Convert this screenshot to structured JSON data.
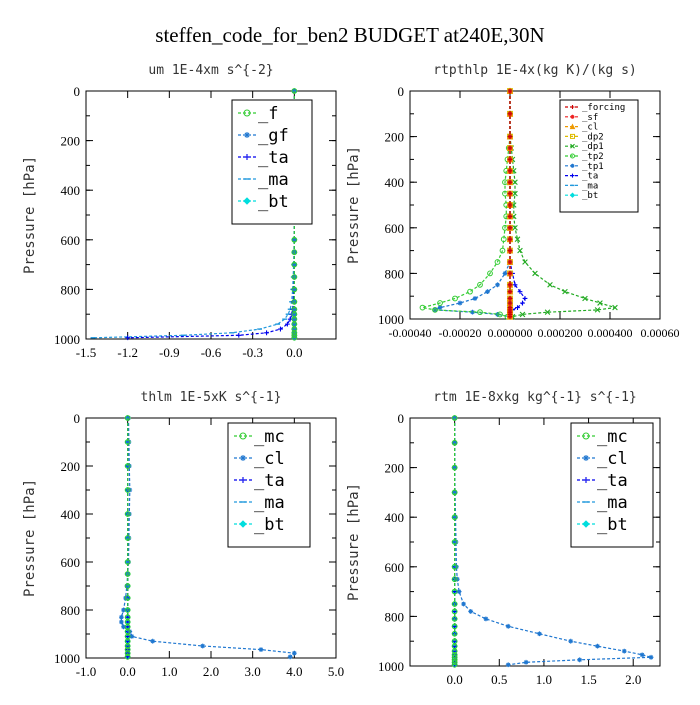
{
  "figure": {
    "title": "steffen_code_for_ben2  BUDGET at240E,30N"
  },
  "chart_data": [
    {
      "type": "line",
      "title": "um  1E-4xm s^{-2}",
      "ylabel": "Pressure [hPa]",
      "xlabel": "",
      "xlim": [
        -1.5,
        0.3
      ],
      "ylim": [
        0,
        1000
      ],
      "y_inverted": true,
      "xticks": [
        -1.5,
        -1.2,
        -0.9,
        -0.6,
        -0.3,
        0.0
      ],
      "xtick_labels": [
        "-1.5",
        "-1.2",
        "-0.9",
        "-0.6",
        "-0.3",
        "0.0"
      ],
      "yticks": [
        0,
        200,
        400,
        600,
        800,
        1000
      ],
      "ytick_labels": [
        "0",
        "200",
        "400",
        "600",
        "800",
        "1000"
      ],
      "legend_position": "top-right",
      "legend_font": "large",
      "y": [
        0,
        100,
        200,
        300,
        400,
        500,
        600,
        650,
        700,
        750,
        800,
        850,
        880,
        900,
        920,
        940,
        960,
        975,
        985,
        995
      ],
      "series": [
        {
          "name": "_f",
          "color": "#33cc33",
          "marker": "circle-open",
          "values": [
            0,
            0,
            0,
            0,
            0,
            0,
            0,
            0,
            0,
            0,
            0,
            0,
            0,
            0,
            0,
            0,
            0,
            0,
            0,
            0
          ]
        },
        {
          "name": "_gf",
          "color": "#1f77d0",
          "marker": "star",
          "values": [
            0,
            0,
            0,
            0,
            0,
            0,
            0,
            0,
            0,
            0,
            0,
            0,
            0,
            0,
            0,
            0,
            0,
            0,
            0,
            0
          ]
        },
        {
          "name": "_ta",
          "color": "#0000ee",
          "marker": "plus",
          "values": [
            0,
            0,
            0,
            0,
            0,
            0,
            0,
            0,
            0,
            -0.002,
            -0.005,
            -0.008,
            -0.012,
            -0.018,
            -0.03,
            -0.05,
            -0.1,
            -0.2,
            -0.4,
            -1.2
          ]
        },
        {
          "name": "_ma",
          "color": "#2299dd",
          "marker": "dash",
          "values": [
            0,
            0,
            0,
            0,
            0,
            -0.001,
            -0.002,
            -0.003,
            -0.005,
            -0.008,
            -0.012,
            -0.02,
            -0.03,
            -0.045,
            -0.07,
            -0.12,
            -0.25,
            -0.45,
            -0.8,
            -1.45
          ]
        },
        {
          "name": "_bt",
          "color": "#00dddd",
          "marker": "diamond",
          "values": [
            0,
            0,
            0,
            0,
            0,
            0,
            0,
            0,
            0,
            0,
            0,
            0,
            0,
            0,
            0,
            0,
            0,
            0,
            0,
            0
          ]
        }
      ]
    },
    {
      "type": "line",
      "title": "rtpthlp  1E-4x(kg K)/(kg s)",
      "ylabel": "Pressure [hPa]",
      "xlabel": "",
      "xlim": [
        -0.0004,
        0.0006
      ],
      "ylim": [
        0,
        1000
      ],
      "y_inverted": true,
      "xticks": [
        -0.0004,
        -0.0002,
        0.0,
        0.0002,
        0.0004,
        0.0006
      ],
      "xtick_labels": [
        "-0.00040",
        "-0.00020",
        "0.000000",
        "0.000200",
        "0.000400",
        "0.00060"
      ],
      "yticks": [
        0,
        200,
        400,
        600,
        800,
        1000
      ],
      "ytick_labels": [
        "0",
        "200",
        "400",
        "600",
        "800",
        "1000"
      ],
      "legend_position": "top-right",
      "legend_font": "small",
      "y": [
        0,
        100,
        200,
        250,
        300,
        350,
        400,
        450,
        500,
        550,
        600,
        650,
        700,
        750,
        800,
        850,
        880,
        910,
        930,
        950,
        960,
        970,
        980,
        990
      ],
      "series": [
        {
          "name": "_forcing",
          "color": "#cc0000",
          "marker": "plus",
          "values": [
            0,
            0,
            0,
            0,
            0,
            0,
            0,
            0,
            0,
            0,
            0,
            0,
            0,
            0,
            0,
            0,
            0,
            0,
            0,
            0,
            0,
            0,
            0,
            0
          ]
        },
        {
          "name": "_sf",
          "color": "#ee2222",
          "marker": "star",
          "values": [
            0,
            0,
            0,
            0,
            0,
            0,
            0,
            0,
            0,
            0,
            0,
            0,
            0,
            0,
            0,
            0,
            0,
            0,
            0,
            0,
            0,
            0,
            0,
            0
          ]
        },
        {
          "name": "_cl",
          "color": "#ee9900",
          "marker": "triangle",
          "values": [
            0,
            0,
            0,
            0,
            0,
            0,
            0,
            0,
            0,
            0,
            0,
            0,
            0,
            0,
            0,
            0,
            0,
            0,
            0,
            0,
            0,
            0,
            0,
            0
          ]
        },
        {
          "name": "_dp2",
          "color": "#ddbb00",
          "marker": "square-open",
          "values": [
            0,
            0,
            0,
            0,
            0,
            0,
            0,
            0,
            0,
            0,
            0,
            0,
            0,
            0,
            0,
            0,
            0,
            0,
            0,
            0,
            0,
            0,
            0,
            0
          ]
        },
        {
          "name": "_dp1",
          "color": "#22aa22",
          "marker": "cross",
          "values": [
            0,
            0,
            0,
            5e-06,
            1e-05,
            1.5e-05,
            2e-05,
            2e-05,
            1.5e-05,
            1.5e-05,
            2e-05,
            3e-05,
            4e-05,
            6e-05,
            0.0001,
            0.00016,
            0.00022,
            0.0003,
            0.00036,
            0.00042,
            0.00035,
            0.00015,
            5e-05,
            1e-05
          ]
        },
        {
          "name": "_tp2",
          "color": "#33cc33",
          "marker": "circle-open",
          "values": [
            0,
            0,
            0,
            -5e-06,
            -1e-05,
            -1.5e-05,
            -2e-05,
            -2e-05,
            -1.5e-05,
            -1.5e-05,
            -2e-05,
            -2.5e-05,
            -3e-05,
            -5e-05,
            -8e-05,
            -0.00012,
            -0.00016,
            -0.00022,
            -0.00028,
            -0.00035,
            -0.0003,
            -0.00012,
            -4e-05,
            -1e-05
          ]
        },
        {
          "name": "_tp1",
          "color": "#1f77d0",
          "marker": "star",
          "values": [
            0,
            0,
            0,
            0,
            0,
            0,
            0,
            0,
            0,
            0,
            0,
            0,
            0,
            0,
            -2e-05,
            -5e-05,
            -9e-05,
            -0.00014,
            -0.0002,
            -0.00028,
            -0.0003,
            -0.00015,
            -5e-05,
            0
          ]
        },
        {
          "name": "_ta",
          "color": "#0000ee",
          "marker": "plus",
          "values": [
            0,
            0,
            0,
            0,
            0,
            0,
            0,
            0,
            0,
            0,
            0,
            0,
            0,
            0,
            1e-05,
            2e-05,
            4e-05,
            6e-05,
            5e-05,
            3e-05,
            1e-05,
            0,
            0,
            0
          ]
        },
        {
          "name": "_ma",
          "color": "#2299dd",
          "marker": "dash",
          "values": [
            0,
            0,
            0,
            0,
            0,
            0,
            0,
            0,
            0,
            0,
            0,
            0,
            0,
            0,
            0,
            0,
            0,
            0,
            0,
            0,
            0,
            0,
            0,
            0
          ]
        },
        {
          "name": "_bt",
          "color": "#00dddd",
          "marker": "diamond",
          "values": [
            0,
            0,
            0,
            0,
            0,
            0,
            0,
            0,
            0,
            0,
            0,
            0,
            0,
            0,
            0,
            0,
            0,
            0,
            0,
            0,
            0,
            0,
            0,
            0
          ]
        }
      ]
    },
    {
      "type": "line",
      "title": "thlm  1E-5xK s^{-1}",
      "ylabel": "Pressure [hPa]",
      "xlabel": "",
      "xlim": [
        -1.0,
        5.0
      ],
      "ylim": [
        0,
        1000
      ],
      "y_inverted": true,
      "xticks": [
        -1.0,
        0.0,
        1.0,
        2.0,
        3.0,
        4.0,
        5.0
      ],
      "xtick_labels": [
        "-1.0",
        "0.0",
        "1.0",
        "2.0",
        "3.0",
        "4.0",
        "5.0"
      ],
      "yticks": [
        0,
        200,
        400,
        600,
        800,
        1000
      ],
      "ytick_labels": [
        "0",
        "200",
        "400",
        "600",
        "800",
        "1000"
      ],
      "legend_position": "top-right",
      "legend_font": "large",
      "y": [
        0,
        100,
        200,
        300,
        400,
        500,
        600,
        650,
        700,
        750,
        800,
        830,
        850,
        870,
        890,
        910,
        930,
        950,
        965,
        980,
        995
      ],
      "series": [
        {
          "name": "_mc",
          "color": "#33cc33",
          "marker": "circle-open",
          "values": [
            0,
            0,
            0,
            0,
            0,
            0,
            0,
            0,
            0,
            0,
            0,
            0,
            0,
            0,
            0,
            0,
            0,
            0,
            0,
            0,
            0
          ]
        },
        {
          "name": "_cl",
          "color": "#1f77d0",
          "marker": "star",
          "values": [
            0.02,
            0.03,
            0.04,
            0.05,
            0.04,
            0.03,
            0.02,
            0.0,
            -0.02,
            -0.05,
            -0.1,
            -0.15,
            -0.15,
            -0.1,
            0.05,
            0.1,
            0.6,
            1.8,
            3.2,
            4.0,
            3.9
          ]
        },
        {
          "name": "_ta",
          "color": "#0000ee",
          "marker": "plus",
          "values": [
            0,
            0,
            0,
            0,
            0,
            0,
            0,
            0,
            0,
            0,
            0,
            0,
            0,
            0,
            0,
            0,
            0,
            0,
            0,
            0,
            0
          ]
        },
        {
          "name": "_ma",
          "color": "#2299dd",
          "marker": "dash",
          "values": [
            0,
            0,
            0,
            0,
            0,
            0,
            0,
            0,
            0,
            0,
            0,
            0,
            0,
            0,
            0,
            0,
            0,
            0,
            0,
            0,
            0
          ]
        },
        {
          "name": "_bt",
          "color": "#00dddd",
          "marker": "diamond",
          "values": [
            0,
            0,
            0,
            0,
            0,
            0,
            0,
            0,
            0,
            0,
            0,
            0,
            0,
            0,
            0,
            0,
            0,
            0,
            0,
            0,
            0
          ]
        }
      ]
    },
    {
      "type": "line",
      "title": "rtm  1E-8xkg kg^{-1} s^{-1}",
      "ylabel": "Pressure [hPa]",
      "xlabel": "",
      "xlim": [
        -0.5,
        2.3
      ],
      "ylim": [
        0,
        1000
      ],
      "y_inverted": true,
      "xticks": [
        0.0,
        0.5,
        1.0,
        1.5,
        2.0
      ],
      "xtick_labels": [
        "0.0",
        "0.5",
        "1.0",
        "1.5",
        "2.0"
      ],
      "yticks": [
        0,
        200,
        400,
        600,
        800,
        1000
      ],
      "ytick_labels": [
        "0",
        "200",
        "400",
        "600",
        "800",
        "1000"
      ],
      "legend_position": "top-right",
      "legend_font": "large",
      "y": [
        0,
        100,
        200,
        300,
        400,
        500,
        600,
        650,
        700,
        750,
        780,
        810,
        840,
        870,
        900,
        920,
        940,
        955,
        965,
        975,
        985,
        995
      ],
      "series": [
        {
          "name": "_mc",
          "color": "#33cc33",
          "marker": "circle-open",
          "values": [
            0,
            0,
            0,
            0,
            0,
            0,
            0,
            0,
            0,
            0,
            0,
            0,
            0,
            0,
            0,
            0,
            0,
            0,
            0,
            0,
            0,
            0
          ]
        },
        {
          "name": "_cl",
          "color": "#1f77d0",
          "marker": "star",
          "values": [
            0,
            0,
            0,
            0.005,
            0.01,
            0.015,
            0.02,
            0.03,
            0.05,
            0.1,
            0.18,
            0.35,
            0.6,
            0.95,
            1.3,
            1.6,
            1.9,
            2.1,
            2.2,
            1.4,
            0.8,
            0.6
          ]
        },
        {
          "name": "_ta",
          "color": "#0000ee",
          "marker": "plus",
          "values": [
            0,
            0,
            0,
            0,
            0,
            0,
            0,
            0,
            0,
            0,
            0,
            0,
            0,
            0,
            0,
            0,
            0,
            0,
            0,
            0,
            0,
            0
          ]
        },
        {
          "name": "_ma",
          "color": "#2299dd",
          "marker": "dash",
          "values": [
            0,
            0,
            0,
            0,
            0,
            0,
            0,
            0,
            0,
            0,
            0,
            0,
            0,
            0,
            0,
            0,
            0,
            0,
            0,
            0,
            0,
            0
          ]
        },
        {
          "name": "_bt",
          "color": "#00dddd",
          "marker": "diamond",
          "values": [
            0,
            0,
            0,
            0,
            0,
            0,
            0,
            0,
            0,
            0,
            0,
            0,
            0,
            0,
            0,
            0,
            0,
            0,
            0,
            0,
            0,
            0
          ]
        }
      ]
    }
  ]
}
